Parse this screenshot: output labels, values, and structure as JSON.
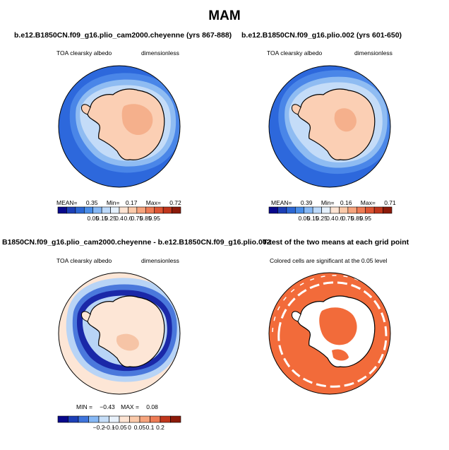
{
  "chart_data": {
    "type": "heatmap",
    "title": "MAM",
    "panels": [
      {
        "title": "b.e12.B1850CN.f09_g16.plio_cam2000.cheyenne (yrs 867-888)",
        "variable": "TOA clearsky albedo",
        "units": "dimensionless",
        "stats": {
          "mean_label": "MEAN=",
          "mean": "0.35",
          "min_label": "Min=",
          "min": "0.17",
          "max_label": "Max=",
          "max": "0.72"
        },
        "colorbar": {
          "labels": [
            "0.05",
            "0.15",
            "0.25",
            "0.4",
            "0.6",
            "0.75",
            "0.85",
            "0.95"
          ],
          "colors": [
            "#08088c",
            "#1c3fb7",
            "#2c67d4",
            "#4a8ee8",
            "#86b8f5",
            "#bcd9fa",
            "#e4f0fc",
            "#fde4d3",
            "#fbcaaa",
            "#f6a47d",
            "#ee7c55",
            "#dd5533",
            "#c0361c",
            "#8c1a0a"
          ]
        }
      },
      {
        "title": "b.e12.B1850CN.f09_g16.plio.002 (yrs 601-650)",
        "variable": "TOA clearsky albedo",
        "units": "dimensionless",
        "stats": {
          "mean_label": "MEAN=",
          "mean": "0.39",
          "min_label": "Min=",
          "min": "0.16",
          "max_label": "Max=",
          "max": "0.71"
        },
        "colorbar": {
          "labels": [
            "0.05",
            "0.15",
            "0.25",
            "0.4",
            "0.6",
            "0.75",
            "0.85",
            "0.95"
          ],
          "colors": [
            "#08088c",
            "#1c3fb7",
            "#2c67d4",
            "#4a8ee8",
            "#86b8f5",
            "#bcd9fa",
            "#e4f0fc",
            "#fde4d3",
            "#fbcaaa",
            "#f6a47d",
            "#ee7c55",
            "#dd5533",
            "#c0361c",
            "#8c1a0a"
          ]
        }
      },
      {
        "title": "B1850CN.f09_g16.plio_cam2000.cheyenne - b.e12.B1850CN.f09_g16.plio.002",
        "variable": "TOA clearsky albedo",
        "units": "dimensionless",
        "stats": {
          "min_label": "MIN =",
          "min": "−0.43",
          "max_label": "MAX =",
          "max": "0.08"
        },
        "colorbar": {
          "labels": [
            "−0.2",
            "−0.1",
            "−0.05",
            "0",
            "0.05",
            "0.1",
            "0.2"
          ],
          "colors": [
            "#08088c",
            "#1c3fb7",
            "#3e74dc",
            "#86b8f5",
            "#c6def8",
            "#e8f1fb",
            "#fde4d3",
            "#fbcaaa",
            "#f6a47d",
            "#ee7c55",
            "#c0361c",
            "#8c1a0a"
          ]
        }
      },
      {
        "title": "T-test of the two means at each grid point",
        "note": "Colored cells are significant at the 0.05 level",
        "colors": {
          "significant": "#f26b3a"
        }
      }
    ],
    "colors": {
      "ocean_outer": "#2d68dc",
      "ocean_mid": "#4a86e8",
      "ice_band": "#8fbcf2",
      "ice_light": "#c4dcf8",
      "land_peach": "#fbcfb4",
      "land_dark": "#f5b08c",
      "diff_deep": "#1a28a8",
      "diff_mid": "#4a78dc",
      "diff_light": "#b8d4f6",
      "diff_bg": "#fde6d6",
      "ttest": "#f26b3a"
    }
  }
}
